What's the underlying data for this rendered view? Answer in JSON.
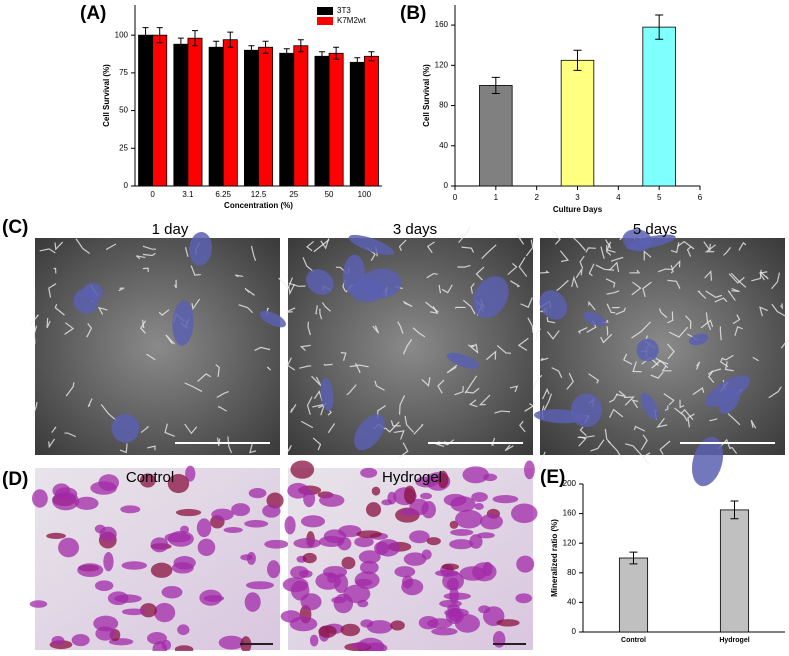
{
  "chart_data": [
    {
      "type": "bar",
      "panel": "(A)",
      "ylabel": "Cell Survival (%)",
      "xlabel": "Concentration (%)",
      "categories": [
        "0",
        "3.1",
        "6.25",
        "12.5",
        "25",
        "50",
        "100"
      ],
      "series": [
        {
          "name": "3T3",
          "color": "#000000",
          "values": [
            100,
            94,
            92,
            90,
            88,
            86,
            82
          ],
          "errors": [
            5,
            4,
            4,
            3,
            3,
            3,
            3
          ]
        },
        {
          "name": "K7M2wt",
          "color": "#ff0000",
          "values": [
            100,
            98,
            97,
            92,
            93,
            88,
            86
          ],
          "errors": [
            5,
            5,
            5,
            4,
            4,
            4,
            3
          ]
        }
      ],
      "ylim": [
        0,
        120
      ],
      "yticks": [
        0,
        25,
        50,
        75,
        100
      ],
      "legend": "top-right"
    },
    {
      "type": "bar",
      "panel": "(B)",
      "ylabel": "Cell Survival (%)",
      "xlabel": "Culture Days",
      "x": [
        1,
        3,
        5
      ],
      "values": [
        100,
        125,
        158
      ],
      "errors": [
        8,
        10,
        12
      ],
      "colors": [
        "#808080",
        "#ffff80",
        "#80ffff"
      ],
      "xlim": [
        0,
        6
      ],
      "xticks": [
        0,
        1,
        2,
        3,
        4,
        5,
        6
      ],
      "ylim": [
        0,
        180
      ],
      "yticks": [
        0,
        40,
        80,
        120,
        160
      ]
    },
    {
      "type": "bar",
      "panel": "(E)",
      "ylabel": "Mineralized ratio (%)",
      "categories": [
        "Control",
        "Hydrogel"
      ],
      "values": [
        100,
        165
      ],
      "errors": [
        8,
        12
      ],
      "color": "#c0c0c0",
      "ylim": [
        0,
        200
      ],
      "yticks": [
        0,
        40,
        80,
        120,
        160,
        200
      ]
    }
  ],
  "figure": {
    "panel_c": "(C)",
    "panel_d": "(D)",
    "sem_captions": [
      "1 day",
      "3 days",
      "5 days"
    ],
    "stain_captions": [
      "Control",
      "Hydrogel"
    ]
  }
}
